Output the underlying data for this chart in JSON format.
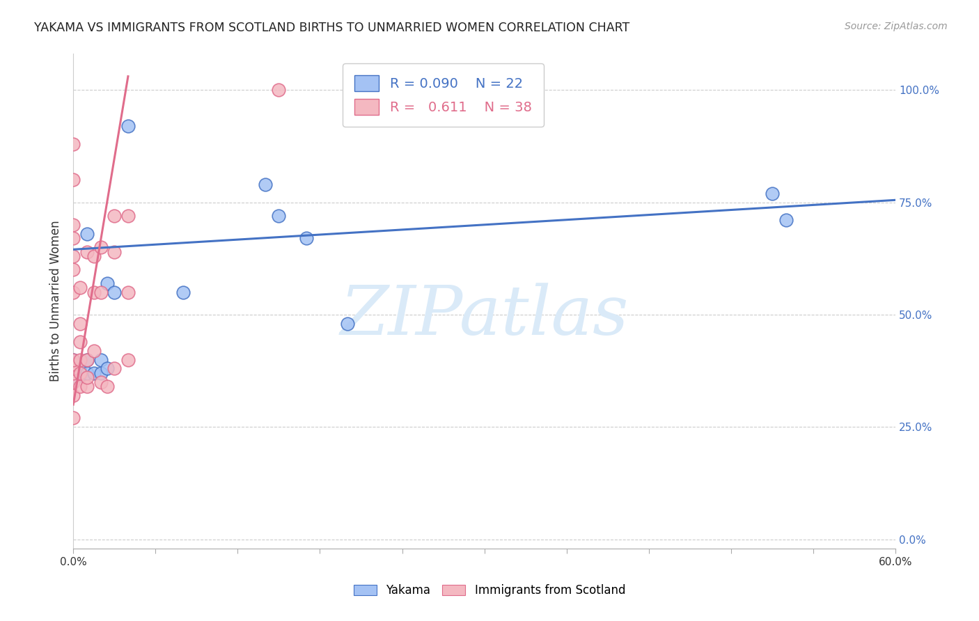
{
  "title": "YAKAMA VS IMMIGRANTS FROM SCOTLAND BIRTHS TO UNMARRIED WOMEN CORRELATION CHART",
  "source": "Source: ZipAtlas.com",
  "ylabel": "Births to Unmarried Women",
  "xlim": [
    0.0,
    0.6
  ],
  "ylim": [
    -0.02,
    1.08
  ],
  "xtick_positions": [
    0.0,
    0.06,
    0.12,
    0.18,
    0.24,
    0.3,
    0.36,
    0.42,
    0.48,
    0.54,
    0.6
  ],
  "ytick_positions": [
    0.0,
    0.25,
    0.5,
    0.75,
    1.0
  ],
  "ylabel_right_ticks": [
    "0.0%",
    "25.0%",
    "50.0%",
    "75.0%",
    "100.0%"
  ],
  "blue_R": 0.09,
  "blue_N": 22,
  "pink_R": 0.611,
  "pink_N": 38,
  "blue_color": "#a4c2f4",
  "pink_color": "#f4b8c1",
  "blue_line_color": "#4472c4",
  "pink_line_color": "#e06c8b",
  "watermark_text": "ZIPatlas",
  "watermark_color": "#daeaf8",
  "blue_scatter_x": [
    0.005,
    0.005,
    0.01,
    0.01,
    0.01,
    0.015,
    0.02,
    0.02,
    0.025,
    0.025,
    0.03,
    0.04,
    0.08,
    0.14,
    0.15,
    0.17,
    0.2,
    0.51,
    0.52,
    0.0,
    0.0,
    0.0
  ],
  "blue_scatter_y": [
    0.365,
    0.385,
    0.37,
    0.4,
    0.68,
    0.37,
    0.37,
    0.4,
    0.57,
    0.38,
    0.55,
    0.92,
    0.55,
    0.79,
    0.72,
    0.67,
    0.48,
    0.77,
    0.71,
    0.36,
    0.38,
    0.4
  ],
  "pink_scatter_x": [
    0.0,
    0.0,
    0.0,
    0.0,
    0.0,
    0.0,
    0.0,
    0.0,
    0.0,
    0.0,
    0.0,
    0.0,
    0.0,
    0.0,
    0.005,
    0.005,
    0.005,
    0.005,
    0.005,
    0.005,
    0.01,
    0.01,
    0.01,
    0.01,
    0.015,
    0.015,
    0.015,
    0.02,
    0.02,
    0.02,
    0.025,
    0.03,
    0.03,
    0.03,
    0.04,
    0.04,
    0.04,
    0.15
  ],
  "pink_scatter_y": [
    0.27,
    0.32,
    0.35,
    0.37,
    0.38,
    0.39,
    0.4,
    0.55,
    0.6,
    0.63,
    0.67,
    0.7,
    0.8,
    0.88,
    0.34,
    0.37,
    0.4,
    0.44,
    0.48,
    0.56,
    0.34,
    0.36,
    0.4,
    0.64,
    0.42,
    0.55,
    0.63,
    0.35,
    0.55,
    0.65,
    0.34,
    0.38,
    0.64,
    0.72,
    0.4,
    0.55,
    0.72,
    1.0
  ],
  "blue_line_x0": 0.0,
  "blue_line_x1": 0.6,
  "blue_line_y0": 0.645,
  "blue_line_y1": 0.755,
  "pink_line_x0": 0.0,
  "pink_line_x1": 0.04,
  "pink_line_y0": 0.3,
  "pink_line_y1": 1.03
}
